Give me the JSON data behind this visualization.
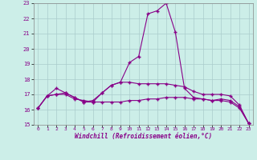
{
  "xlabel": "Windchill (Refroidissement éolien,°C)",
  "bg_color": "#cceee8",
  "line_color": "#880088",
  "grid_color": "#aacccc",
  "series1": {
    "x": [
      0,
      1,
      2,
      3,
      4,
      5,
      6,
      7,
      8,
      9,
      10,
      11,
      12,
      13,
      14,
      15,
      16,
      17,
      18,
      19,
      20,
      21,
      22,
      23
    ],
    "y": [
      16.1,
      16.9,
      17.4,
      17.1,
      16.8,
      16.5,
      16.6,
      17.1,
      17.6,
      17.8,
      19.1,
      19.5,
      22.3,
      22.5,
      23.0,
      21.1,
      17.4,
      16.8,
      16.7,
      16.6,
      16.7,
      16.6,
      16.2,
      15.1
    ]
  },
  "series2": {
    "x": [
      0,
      1,
      2,
      3,
      4,
      5,
      6,
      7,
      8,
      9,
      10,
      11,
      12,
      13,
      14,
      15,
      16,
      17,
      18,
      19,
      20,
      21,
      22,
      23
    ],
    "y": [
      16.1,
      16.9,
      17.0,
      17.0,
      16.7,
      16.6,
      16.5,
      16.5,
      16.5,
      16.5,
      16.6,
      16.6,
      16.7,
      16.7,
      16.8,
      16.8,
      16.8,
      16.7,
      16.7,
      16.6,
      16.6,
      16.5,
      16.1,
      15.1
    ]
  },
  "series3": {
    "x": [
      0,
      1,
      2,
      3,
      4,
      5,
      6,
      7,
      8,
      9,
      10,
      11,
      12,
      13,
      14,
      15,
      16,
      17,
      18,
      19,
      20,
      21,
      22,
      23
    ],
    "y": [
      16.1,
      16.9,
      17.0,
      17.1,
      16.8,
      16.5,
      16.5,
      17.1,
      17.6,
      17.8,
      17.8,
      17.7,
      17.7,
      17.7,
      17.7,
      17.6,
      17.5,
      17.2,
      17.0,
      17.0,
      17.0,
      16.9,
      16.3,
      15.1
    ]
  },
  "ylim": [
    15,
    23
  ],
  "yticks": [
    15,
    16,
    17,
    18,
    19,
    20,
    21,
    22,
    23
  ],
  "xlim": [
    -0.5,
    23.5
  ],
  "xticks": [
    0,
    1,
    2,
    3,
    4,
    5,
    6,
    7,
    8,
    9,
    10,
    11,
    12,
    13,
    14,
    15,
    16,
    17,
    18,
    19,
    20,
    21,
    22,
    23
  ]
}
